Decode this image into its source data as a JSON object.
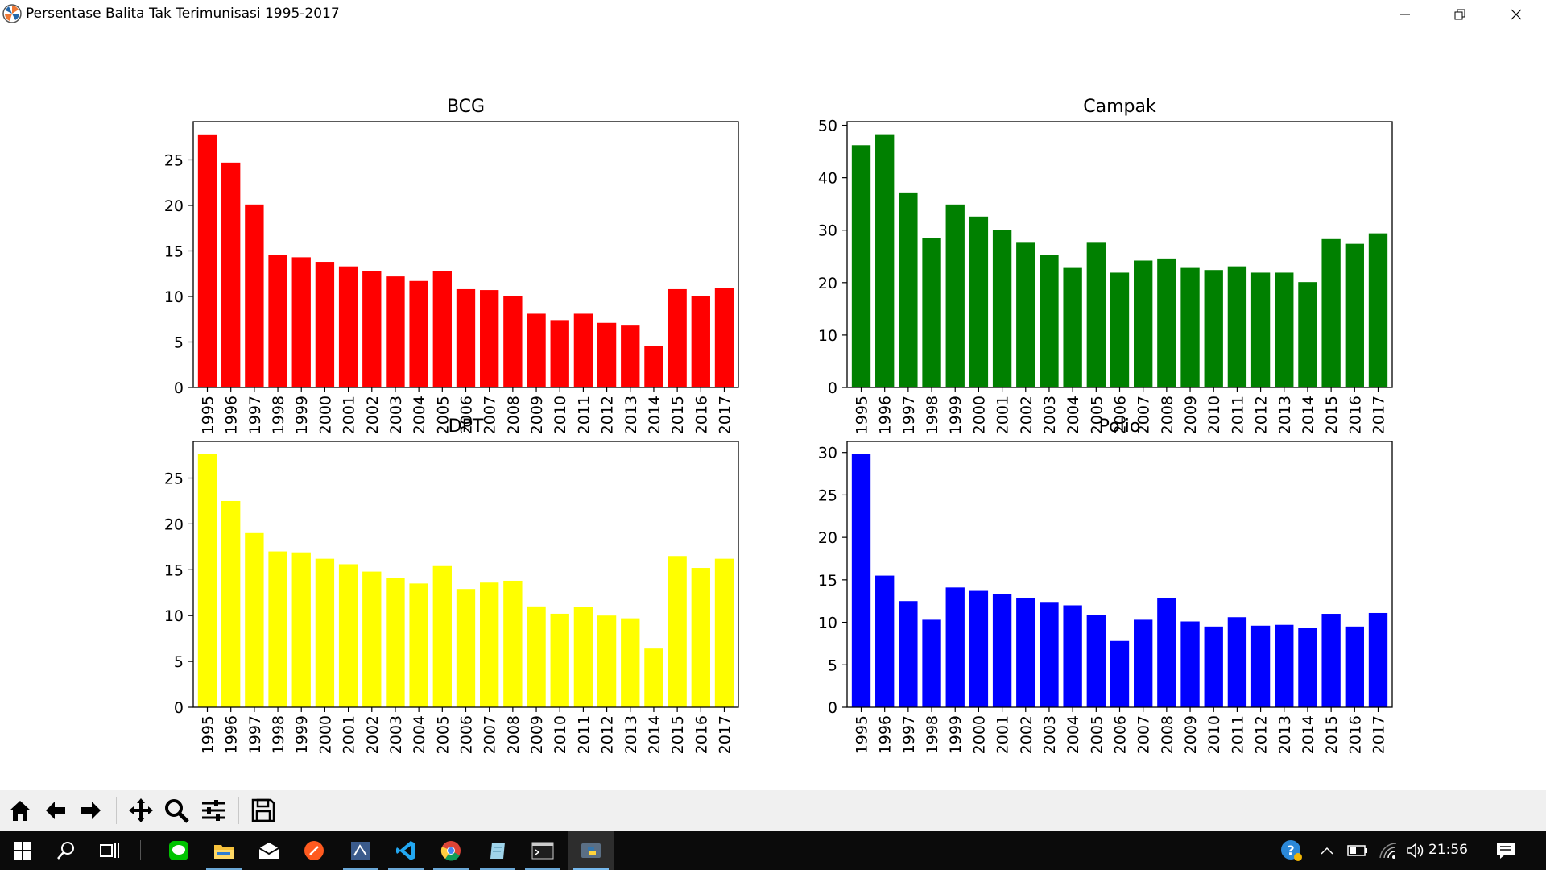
{
  "window": {
    "title": "Persentase Balita Tak Terimunisasi 1995-2017",
    "icon": "matplotlib-icon",
    "controls": [
      "minimize-icon",
      "restore-icon",
      "close-icon"
    ]
  },
  "toolbar": {
    "buttons": [
      "home-icon",
      "back-icon",
      "forward-icon",
      "pan-icon",
      "zoom-icon",
      "configure-subplots-icon",
      "save-icon"
    ]
  },
  "taskbar": {
    "items": [
      "windows-start-icon",
      "search-icon",
      "task-view-icon",
      "line-app-icon",
      "file-explorer-icon",
      "mail-icon",
      "brave-browser-icon",
      "sql-server-icon",
      "vscode-icon",
      "chrome-icon",
      "notepad-icon",
      "terminal-icon",
      "python-icon"
    ],
    "tray": [
      "help-icon",
      "chevron-up-icon",
      "battery-icon",
      "wifi-icon",
      "volume-icon",
      "notification-icon"
    ],
    "clock": "21:56"
  },
  "chart_data": [
    {
      "type": "bar",
      "title": "BCG",
      "color": "#ff0000",
      "categories": [
        "1995",
        "1996",
        "1997",
        "1998",
        "1999",
        "2000",
        "2001",
        "2002",
        "2003",
        "2004",
        "2005",
        "2006",
        "2007",
        "2008",
        "2009",
        "2010",
        "2011",
        "2012",
        "2013",
        "2014",
        "2015",
        "2016",
        "2017"
      ],
      "values": [
        27.8,
        24.7,
        20.1,
        14.6,
        14.3,
        13.8,
        13.3,
        12.8,
        12.2,
        11.7,
        12.8,
        10.8,
        10.7,
        10.0,
        8.1,
        7.4,
        8.1,
        7.1,
        6.8,
        4.6,
        10.8,
        10.0,
        10.9
      ],
      "yticks": [
        0,
        5,
        10,
        15,
        20,
        25
      ],
      "ylim": [
        0,
        29.2
      ]
    },
    {
      "type": "bar",
      "title": "Campak",
      "color": "#008000",
      "categories": [
        "1995",
        "1996",
        "1997",
        "1998",
        "1999",
        "2000",
        "2001",
        "2002",
        "2003",
        "2004",
        "2005",
        "2006",
        "2007",
        "2008",
        "2009",
        "2010",
        "2011",
        "2012",
        "2013",
        "2014",
        "2015",
        "2016",
        "2017"
      ],
      "values": [
        46.2,
        48.3,
        37.2,
        28.5,
        34.9,
        32.6,
        30.1,
        27.6,
        25.3,
        22.8,
        27.6,
        21.9,
        24.2,
        24.6,
        22.8,
        22.4,
        23.1,
        21.9,
        21.9,
        20.1,
        28.3,
        27.4,
        29.4
      ],
      "yticks": [
        0,
        10,
        20,
        30,
        40,
        50
      ],
      "ylim": [
        0,
        50.7
      ]
    },
    {
      "type": "bar",
      "title": "DPT",
      "color": "#ffff00",
      "categories": [
        "1995",
        "1996",
        "1997",
        "1998",
        "1999",
        "2000",
        "2001",
        "2002",
        "2003",
        "2004",
        "2005",
        "2006",
        "2007",
        "2008",
        "2009",
        "2010",
        "2011",
        "2012",
        "2013",
        "2014",
        "2015",
        "2016",
        "2017"
      ],
      "values": [
        27.6,
        22.5,
        19.0,
        17.0,
        16.9,
        16.2,
        15.6,
        14.8,
        14.1,
        13.5,
        15.4,
        12.9,
        13.6,
        13.8,
        11.0,
        10.2,
        10.9,
        10.0,
        9.7,
        6.4,
        16.5,
        15.2,
        16.2
      ],
      "yticks": [
        0,
        5,
        10,
        15,
        20,
        25
      ],
      "ylim": [
        0,
        29.0
      ]
    },
    {
      "type": "bar",
      "title": "Polio",
      "color": "#0000ff",
      "categories": [
        "1995",
        "1996",
        "1997",
        "1998",
        "1999",
        "2000",
        "2001",
        "2002",
        "2003",
        "2004",
        "2005",
        "2006",
        "2007",
        "2008",
        "2009",
        "2010",
        "2011",
        "2012",
        "2013",
        "2014",
        "2015",
        "2016",
        "2017"
      ],
      "values": [
        29.8,
        15.5,
        12.5,
        10.3,
        14.1,
        13.7,
        13.3,
        12.9,
        12.4,
        12.0,
        10.9,
        7.8,
        10.3,
        12.9,
        10.1,
        9.5,
        10.6,
        9.6,
        9.7,
        9.3,
        11.0,
        9.5,
        11.1
      ],
      "yticks": [
        0,
        5,
        10,
        15,
        20,
        25,
        30
      ],
      "ylim": [
        0,
        31.3
      ]
    }
  ]
}
